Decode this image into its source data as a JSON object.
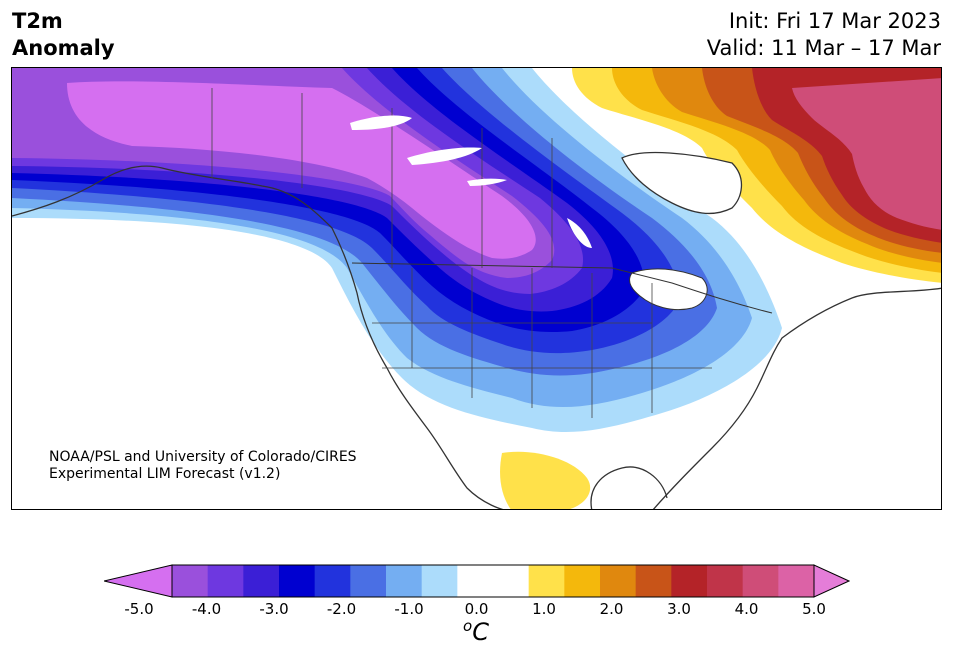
{
  "title": {
    "line1": "T2m",
    "line2": "Anomaly"
  },
  "dates": {
    "init": "Init: Fri 17 Mar 2023",
    "valid": "Valid: 11 Mar – 17 Mar"
  },
  "credit": {
    "line1": "NOAA/PSL and University of Colorado/CIRES",
    "line2": "Experimental LIM Forecast (v1.2)"
  },
  "colorbar": {
    "unit_base": "C",
    "unit_sup": "o",
    "ticks": [
      "-5.0",
      "-4.0",
      "-3.0",
      "-2.0",
      "-1.0",
      "0.0",
      "1.0",
      "2.0",
      "3.0",
      "4.0",
      "5.0"
    ],
    "colors": [
      "#d56ff0",
      "#9a50dc",
      "#6e38e0",
      "#3b1fd6",
      "#0000d0",
      "#2233dd",
      "#4a6fe4",
      "#74aef2",
      "#acdcfb",
      "#ffffff",
      "#ffffff",
      "#ffe14a",
      "#f4b80c",
      "#e0880e",
      "#c85418",
      "#b42328",
      "#c03449",
      "#cf4d78",
      "#dc62a6",
      "#e57dd8"
    ]
  },
  "map_colors": {
    "land": "#ffffff",
    "ocean": "#ffffff",
    "border": "#333333"
  }
}
